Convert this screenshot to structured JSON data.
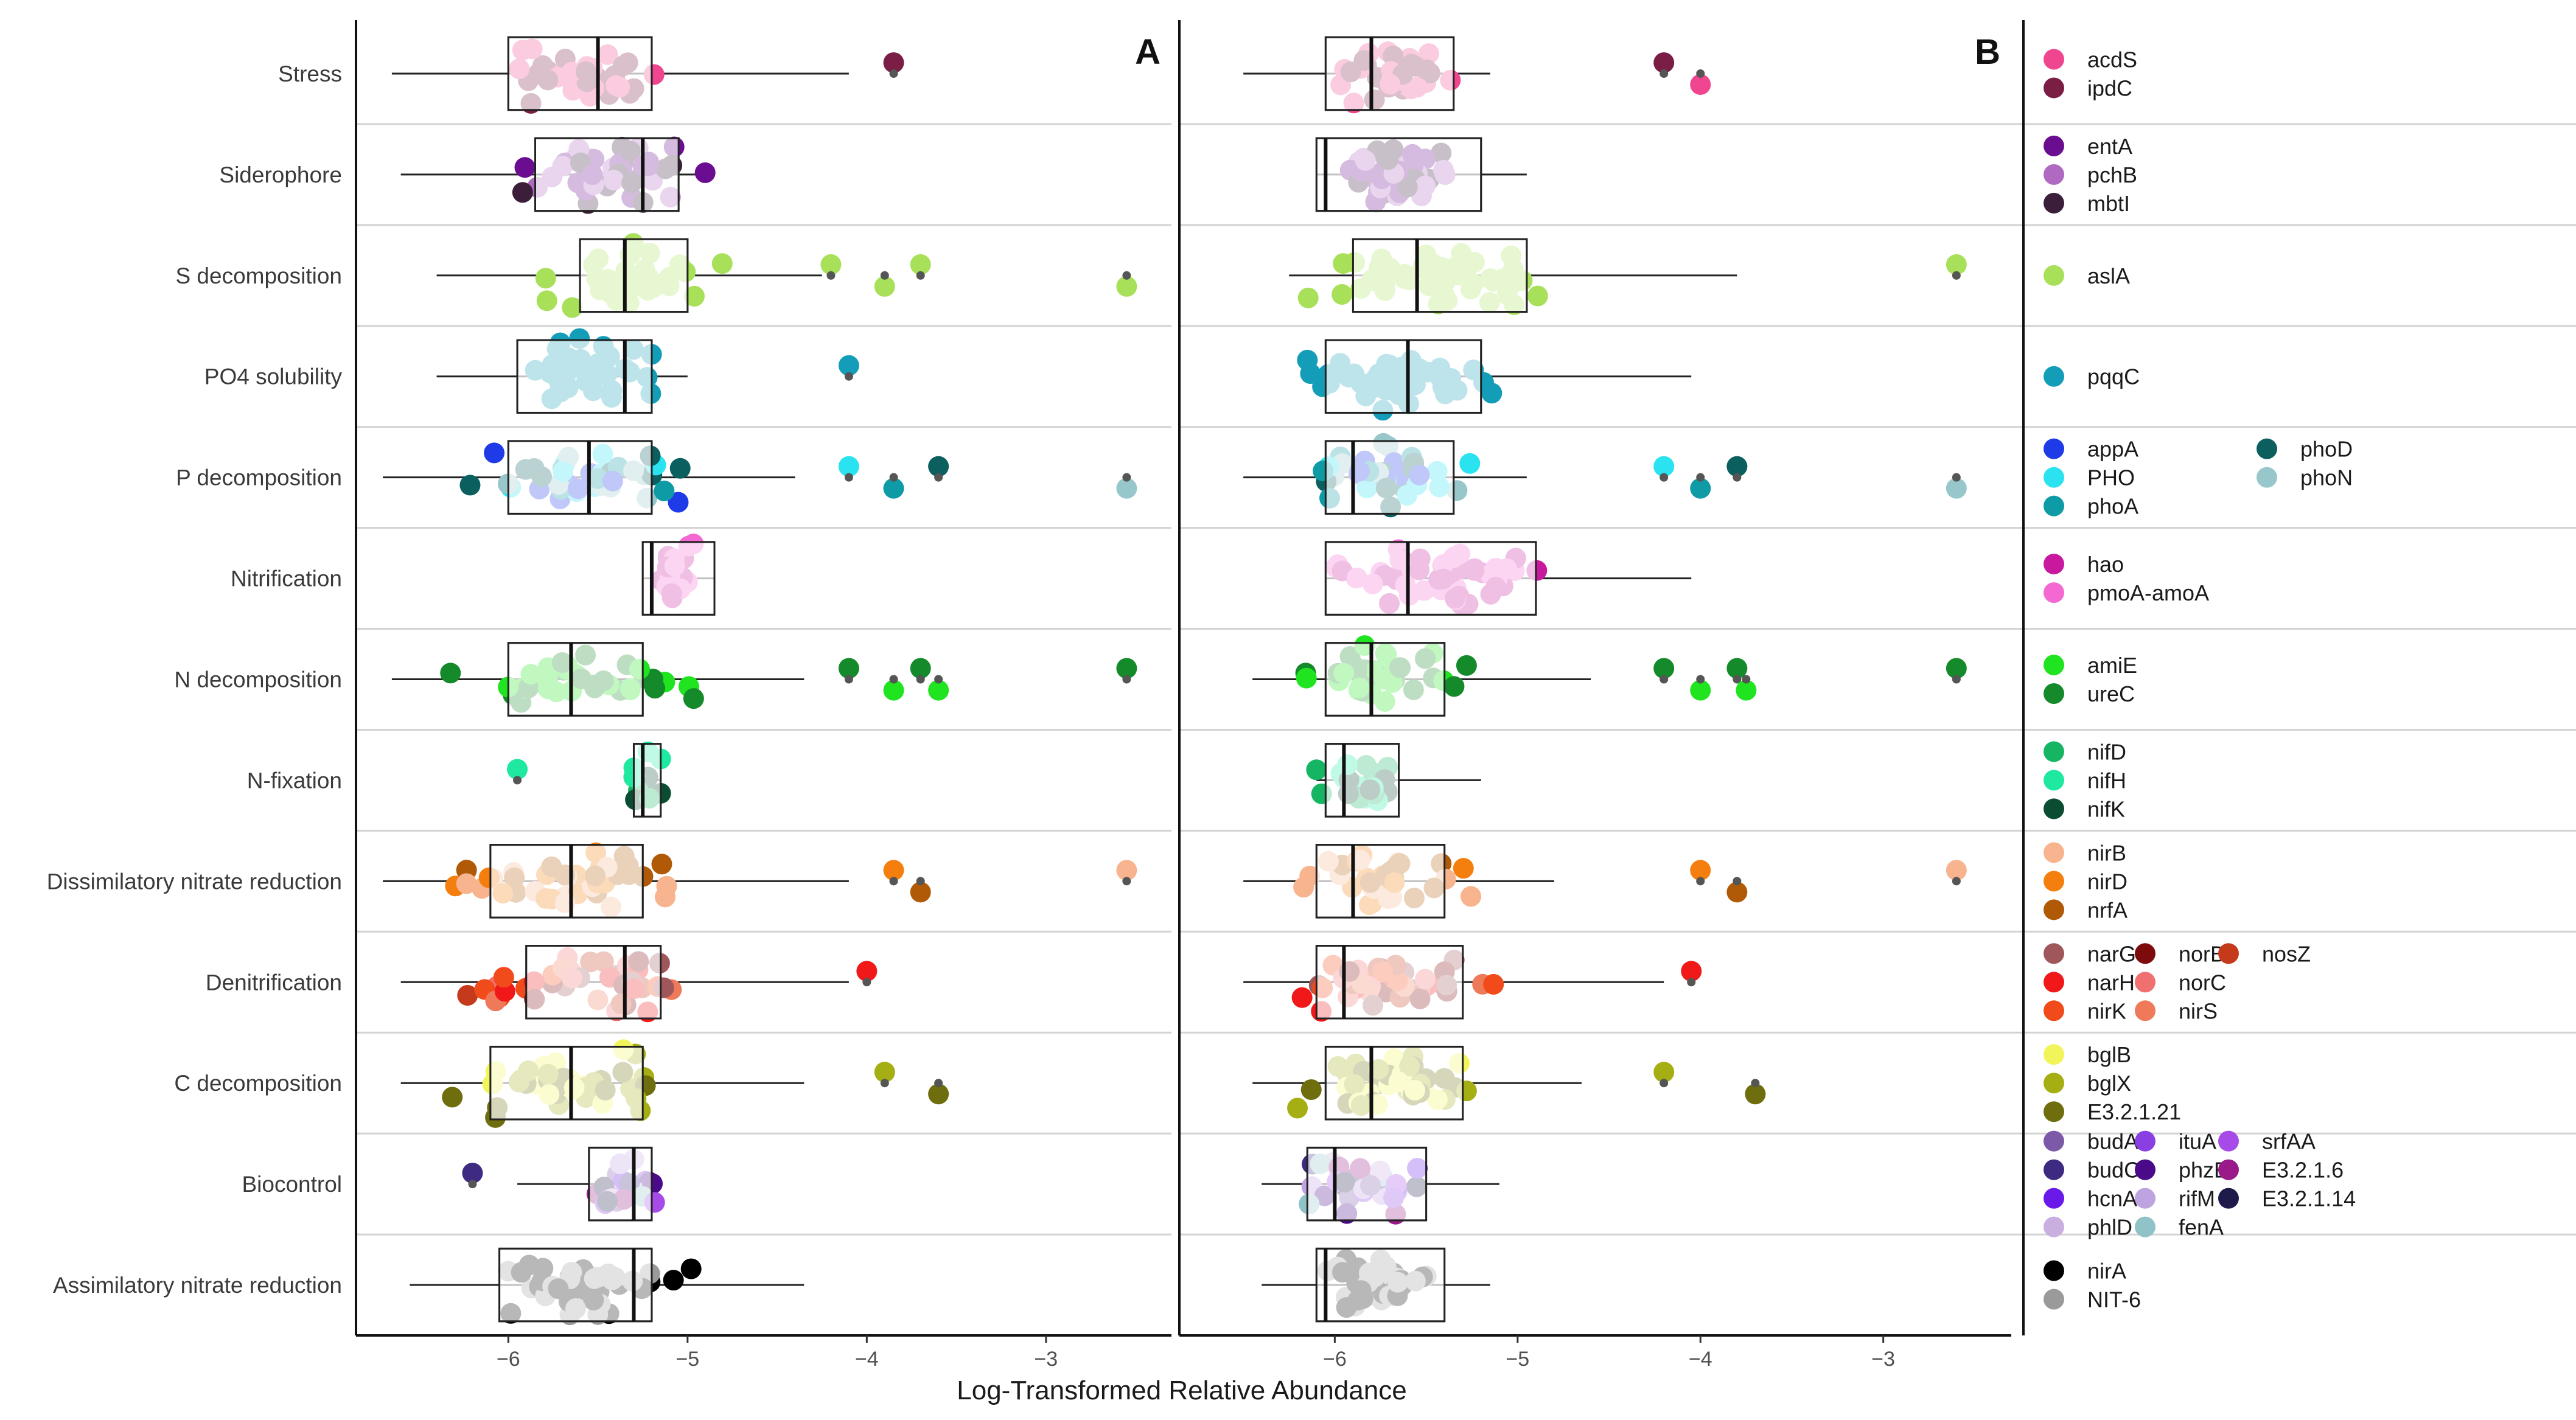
{
  "chart_data": {
    "type": "boxplot-jitter",
    "xlabel": "Log-Transformed Relative Abundance",
    "xlim": [
      -6.85,
      -2.3
    ],
    "x_ticks": [
      -6,
      -5,
      -4,
      -3
    ],
    "x_tick_labels": [
      "−6",
      "−5",
      "−4",
      "−3"
    ],
    "categories": [
      "Stress",
      "Siderophore",
      "S decomposition",
      "PO4 solubility",
      "P decomposition",
      "Nitrification",
      "N decomposition",
      "N-fixation",
      "Dissimilatory nitrate reduction",
      "Denitrification",
      "C decomposition",
      "Biocontrol",
      "Assimilatory nitrate reduction"
    ],
    "panels": [
      {
        "label": "A",
        "boxes": [
          {
            "q1": -6.0,
            "median": -5.5,
            "q3": -5.2,
            "wmin": -6.65,
            "wmax": -4.1,
            "outliers": [
              -3.85
            ]
          },
          {
            "q1": -5.85,
            "median": -5.25,
            "q3": -5.05,
            "wmin": -6.6,
            "wmax": -4.85,
            "outliers": []
          },
          {
            "q1": -5.6,
            "median": -5.35,
            "q3": -5.0,
            "wmin": -6.4,
            "wmax": -4.25,
            "outliers": [
              -4.2,
              -3.9,
              -3.7,
              -2.55
            ]
          },
          {
            "q1": -5.95,
            "median": -5.35,
            "q3": -5.2,
            "wmin": -6.4,
            "wmax": -5.0,
            "outliers": [
              -4.1
            ]
          },
          {
            "q1": -6.0,
            "median": -5.55,
            "q3": -5.2,
            "wmin": -6.7,
            "wmax": -4.4,
            "outliers": [
              -4.1,
              -3.85,
              -3.6,
              -2.55
            ]
          },
          {
            "q1": -5.25,
            "median": -5.2,
            "q3": -4.85,
            "wmin": -5.25,
            "wmax": -4.85,
            "outliers": []
          },
          {
            "q1": -6.0,
            "median": -5.65,
            "q3": -5.25,
            "wmin": -6.65,
            "wmax": -4.35,
            "outliers": [
              -4.1,
              -3.85,
              -3.7,
              -3.6,
              -2.55
            ]
          },
          {
            "q1": -5.3,
            "median": -5.25,
            "q3": -5.15,
            "wmin": -5.3,
            "wmax": -5.15,
            "outliers": [
              -5.95
            ]
          },
          {
            "q1": -6.1,
            "median": -5.65,
            "q3": -5.25,
            "wmin": -6.7,
            "wmax": -4.1,
            "outliers": [
              -3.85,
              -3.7,
              -2.55
            ]
          },
          {
            "q1": -5.9,
            "median": -5.35,
            "q3": -5.15,
            "wmin": -6.6,
            "wmax": -4.1,
            "outliers": [
              -4.0
            ]
          },
          {
            "q1": -6.1,
            "median": -5.65,
            "q3": -5.25,
            "wmin": -6.6,
            "wmax": -4.35,
            "outliers": [
              -3.9,
              -3.6
            ]
          },
          {
            "q1": -5.55,
            "median": -5.3,
            "q3": -5.2,
            "wmin": -5.95,
            "wmax": -5.15,
            "outliers": [
              -6.2
            ]
          },
          {
            "q1": -6.05,
            "median": -5.3,
            "q3": -5.2,
            "wmin": -6.55,
            "wmax": -4.35,
            "outliers": []
          }
        ]
      },
      {
        "label": "B",
        "boxes": [
          {
            "q1": -6.05,
            "median": -5.8,
            "q3": -5.35,
            "wmin": -6.5,
            "wmax": -5.15,
            "outliers": [
              -4.2,
              -4.0
            ]
          },
          {
            "q1": -6.1,
            "median": -6.05,
            "q3": -5.2,
            "wmin": -6.1,
            "wmax": -4.95,
            "outliers": []
          },
          {
            "q1": -5.9,
            "median": -5.55,
            "q3": -4.95,
            "wmin": -6.25,
            "wmax": -3.8,
            "outliers": [
              -2.6
            ]
          },
          {
            "q1": -6.05,
            "median": -5.6,
            "q3": -5.2,
            "wmin": -6.15,
            "wmax": -4.05,
            "outliers": []
          },
          {
            "q1": -6.05,
            "median": -5.9,
            "q3": -5.35,
            "wmin": -6.5,
            "wmax": -4.95,
            "outliers": [
              -4.2,
              -4.0,
              -3.8,
              -2.6
            ]
          },
          {
            "q1": -6.05,
            "median": -5.6,
            "q3": -4.9,
            "wmin": -6.05,
            "wmax": -4.05,
            "outliers": []
          },
          {
            "q1": -6.05,
            "median": -5.8,
            "q3": -5.4,
            "wmin": -6.45,
            "wmax": -4.6,
            "outliers": [
              -4.2,
              -4.0,
              -3.8,
              -3.75,
              -2.6
            ]
          },
          {
            "q1": -6.05,
            "median": -5.95,
            "q3": -5.65,
            "wmin": -6.1,
            "wmax": -5.2,
            "outliers": []
          },
          {
            "q1": -6.1,
            "median": -5.9,
            "q3": -5.4,
            "wmin": -6.5,
            "wmax": -4.8,
            "outliers": [
              -4.0,
              -3.8,
              -2.6
            ]
          },
          {
            "q1": -6.1,
            "median": -5.95,
            "q3": -5.3,
            "wmin": -6.5,
            "wmax": -4.2,
            "outliers": [
              -4.05
            ]
          },
          {
            "q1": -6.05,
            "median": -5.8,
            "q3": -5.3,
            "wmin": -6.45,
            "wmax": -4.65,
            "outliers": [
              -4.2,
              -3.7
            ]
          },
          {
            "q1": -6.15,
            "median": -6.0,
            "q3": -5.5,
            "wmin": -6.4,
            "wmax": -5.1,
            "outliers": []
          },
          {
            "q1": -6.1,
            "median": -6.05,
            "q3": -5.4,
            "wmin": -6.4,
            "wmax": -5.15,
            "outliers": []
          }
        ]
      }
    ],
    "legend_groups": [
      {
        "columns": 1,
        "items": [
          {
            "gene": "acdS",
            "color": "#F0458F"
          },
          {
            "gene": "ipdC",
            "color": "#7A1E46"
          }
        ]
      },
      {
        "columns": 1,
        "items": [
          {
            "gene": "entA",
            "color": "#6A0D91"
          },
          {
            "gene": "pchB",
            "color": "#B069C0"
          },
          {
            "gene": "mbtI",
            "color": "#3B1F3A"
          }
        ]
      },
      {
        "columns": 1,
        "items": [
          {
            "gene": "aslA",
            "color": "#A8E05A"
          }
        ]
      },
      {
        "columns": 1,
        "items": [
          {
            "gene": "pqqC",
            "color": "#139DB8"
          }
        ]
      },
      {
        "columns": 2,
        "items": [
          {
            "gene": "appA",
            "color": "#1F3BE8"
          },
          {
            "gene": "PHO",
            "color": "#2BE3F0"
          },
          {
            "gene": "phoA",
            "color": "#0E9BA6"
          },
          {
            "gene": "phoD",
            "color": "#0B5F5F"
          },
          {
            "gene": "phoN",
            "color": "#97C7CB"
          }
        ]
      },
      {
        "columns": 1,
        "items": [
          {
            "gene": "hao",
            "color": "#C8199E"
          },
          {
            "gene": "pmoA-amoA",
            "color": "#F468D2"
          }
        ]
      },
      {
        "columns": 1,
        "items": [
          {
            "gene": "amiE",
            "color": "#1FE41F"
          },
          {
            "gene": "ureC",
            "color": "#148A2A"
          }
        ]
      },
      {
        "columns": 1,
        "items": [
          {
            "gene": "nifD",
            "color": "#15B563"
          },
          {
            "gene": "nifH",
            "color": "#1FE8A0"
          },
          {
            "gene": "nifK",
            "color": "#0B4D33"
          }
        ]
      },
      {
        "columns": 1,
        "items": [
          {
            "gene": "nirB",
            "color": "#F7B48E"
          },
          {
            "gene": "nirD",
            "color": "#F57F0E"
          },
          {
            "gene": "nrfA",
            "color": "#B05A08"
          }
        ]
      },
      {
        "columns": 3,
        "items": [
          {
            "gene": "narG",
            "color": "#A0575C"
          },
          {
            "gene": "narH",
            "color": "#F01818"
          },
          {
            "gene": "nirK",
            "color": "#F24B1B"
          },
          {
            "gene": "norB",
            "color": "#7D0B0B"
          },
          {
            "gene": "norC",
            "color": "#F07070"
          },
          {
            "gene": "nirS",
            "color": "#EE7A5A"
          },
          {
            "gene": "nosZ",
            "color": "#C53A1A"
          }
        ]
      },
      {
        "columns": 1,
        "items": [
          {
            "gene": "bglB",
            "color": "#F2F55A"
          },
          {
            "gene": "bglX",
            "color": "#A5AE12"
          },
          {
            "gene": "E3.2.1.21",
            "color": "#6E6E0E"
          }
        ]
      },
      {
        "columns": 3,
        "items": [
          {
            "gene": "budA",
            "color": "#7D5AA8"
          },
          {
            "gene": "budC",
            "color": "#3E2A80"
          },
          {
            "gene": "hcnA",
            "color": "#6A1AE8"
          },
          {
            "gene": "phlD",
            "color": "#C9AEE0"
          },
          {
            "gene": "ituA",
            "color": "#8A3FE3"
          },
          {
            "gene": "phzE",
            "color": "#4A0A8A"
          },
          {
            "gene": "rifM",
            "color": "#BDA3E0"
          },
          {
            "gene": "fenA",
            "color": "#8FC3C8"
          },
          {
            "gene": "srfAA",
            "color": "#A64AE8"
          },
          {
            "gene": "E3.2.1.6",
            "color": "#9A1A8A"
          },
          {
            "gene": "E3.2.1.14",
            "color": "#1E1A4A"
          }
        ]
      },
      {
        "columns": 1,
        "items": [
          {
            "gene": "nirA",
            "color": "#000000"
          },
          {
            "gene": "NIT-6",
            "color": "#9A9A9A"
          }
        ]
      }
    ]
  }
}
